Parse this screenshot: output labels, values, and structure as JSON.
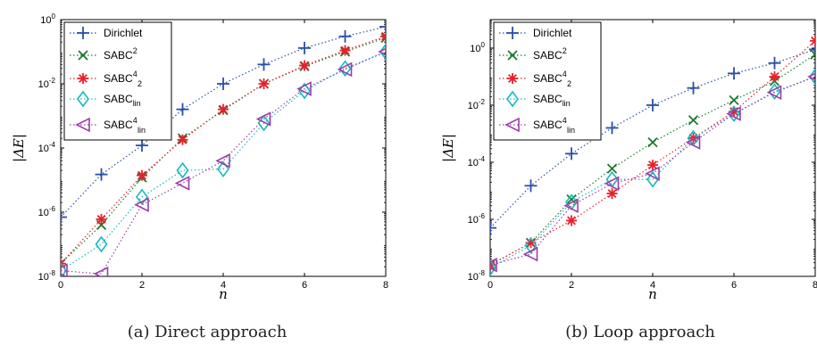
{
  "figure": {
    "captions": [
      "(a)  Direct approach",
      "(b)  Loop approach"
    ]
  },
  "chart_data": [
    {
      "type": "line",
      "xlabel": "n",
      "ylabel": "|ΔE|",
      "xlim": [
        0,
        8
      ],
      "ylim": [
        1e-08,
        1
      ],
      "yscale": "log",
      "xticks": [
        0,
        2,
        4,
        6,
        8
      ],
      "yticks": [
        1e-08,
        1e-06,
        0.0001,
        0.01,
        1
      ],
      "ytick_labels": [
        {
          "base": "10",
          "exp": "-8"
        },
        {
          "base": "10",
          "exp": "-6"
        },
        {
          "base": "10",
          "exp": "-4"
        },
        {
          "base": "10",
          "exp": "-2"
        },
        {
          "base": "10",
          "exp": "0"
        }
      ],
      "grid": false,
      "legend_position": "top-left",
      "series": [
        {
          "label": "Dirichlet",
          "marker": "plus",
          "color": "#2a4fa8",
          "x": [
            0,
            1,
            2,
            3,
            4,
            5,
            6,
            7,
            8
          ],
          "y": [
            7e-07,
            1.5e-05,
            0.00012,
            0.0016,
            0.01,
            0.04,
            0.13,
            0.3,
            0.6
          ]
        },
        {
          "label": "SABC",
          "sup": "2",
          "sub": "",
          "marker": "x",
          "color": "#1e7a2e",
          "x": [
            0,
            1,
            2,
            3,
            4,
            5,
            6,
            7,
            8
          ],
          "y": [
            2.5e-08,
            4e-07,
            1.2e-05,
            0.0002,
            0.0015,
            0.01,
            0.035,
            0.1,
            0.27
          ]
        },
        {
          "label": "SABC",
          "sup": "4",
          "sub": "2",
          "marker": "asterisk",
          "color": "#e8202a",
          "x": [
            0,
            1,
            2,
            3,
            4,
            5,
            6,
            7,
            8
          ],
          "y": [
            2.5e-08,
            6e-07,
            1.4e-05,
            0.00018,
            0.0016,
            0.01,
            0.037,
            0.11,
            0.3
          ]
        },
        {
          "label": "SABC",
          "sup": "",
          "sub": "lin",
          "marker": "diamond",
          "color": "#19b8c0",
          "x": [
            0,
            1,
            2,
            3,
            4,
            5,
            6,
            7,
            8
          ],
          "y": [
            1.5e-08,
            1e-07,
            3e-06,
            2e-05,
            2.2e-05,
            0.0006,
            0.006,
            0.03,
            0.1
          ]
        },
        {
          "label": "SABC",
          "sup": "4",
          "sub": "lin",
          "marker": "triangle-left",
          "color": "#9b3fa8",
          "x": [
            0,
            1,
            2,
            3,
            4,
            5,
            6,
            7,
            8
          ],
          "y": [
            1.5e-08,
            1.2e-08,
            1.7e-06,
            8e-06,
            4e-05,
            0.0008,
            0.007,
            0.028,
            0.1
          ]
        }
      ]
    },
    {
      "type": "line",
      "xlabel": "n",
      "ylabel": "|ΔE|",
      "xlim": [
        0,
        8
      ],
      "ylim": [
        1e-08,
        10.0
      ],
      "yscale": "log",
      "xticks": [
        0,
        2,
        4,
        6,
        8
      ],
      "yticks": [
        1e-08,
        1e-06,
        0.0001,
        0.01,
        1
      ],
      "ytick_labels": [
        {
          "base": "10",
          "exp": "-8"
        },
        {
          "base": "10",
          "exp": "-6"
        },
        {
          "base": "10",
          "exp": "-4"
        },
        {
          "base": "10",
          "exp": "-2"
        },
        {
          "base": "10",
          "exp": "0"
        }
      ],
      "grid": false,
      "legend_position": "top-left",
      "series": [
        {
          "label": "Dirichlet",
          "marker": "plus",
          "color": "#2a4fa8",
          "x": [
            0,
            1,
            2,
            3,
            4,
            5,
            6,
            7,
            8
          ],
          "y": [
            5e-07,
            1.5e-05,
            0.0002,
            0.0016,
            0.01,
            0.04,
            0.13,
            0.3,
            0.9
          ]
        },
        {
          "label": "SABC",
          "sup": "2",
          "sub": "",
          "marker": "x",
          "color": "#1e7a2e",
          "x": [
            0,
            1,
            2,
            3,
            4,
            5,
            6,
            7,
            8
          ],
          "y": [
            2.5e-08,
            1.5e-07,
            5e-06,
            6e-05,
            0.0005,
            0.003,
            0.015,
            0.07,
            0.6
          ]
        },
        {
          "label": "SABC",
          "sup": "4",
          "sub": "2",
          "marker": "asterisk",
          "color": "#e8202a",
          "x": [
            0,
            1,
            2,
            3,
            4,
            5,
            6,
            7,
            8
          ],
          "y": [
            2.5e-08,
            1.5e-07,
            9e-07,
            8e-06,
            8e-05,
            0.0007,
            0.006,
            0.1,
            1.8
          ]
        },
        {
          "label": "SABC",
          "sup": "",
          "sub": "lin",
          "marker": "diamond",
          "color": "#19b8c0",
          "x": [
            0,
            1,
            2,
            3,
            4,
            5,
            6,
            7,
            8
          ],
          "y": [
            2e-08,
            1.2e-07,
            4e-06,
            2.5e-05,
            2.5e-05,
            0.0007,
            0.005,
            0.03,
            0.1
          ]
        },
        {
          "label": "SABC",
          "sup": "4",
          "sub": "lin",
          "marker": "triangle-left",
          "color": "#9b3fa8",
          "x": [
            0,
            1,
            2,
            3,
            4,
            5,
            6,
            7,
            8
          ],
          "y": [
            2.5e-08,
            6e-08,
            3e-06,
            1.8e-05,
            4e-05,
            0.0005,
            0.005,
            0.028,
            0.1
          ]
        }
      ]
    }
  ]
}
